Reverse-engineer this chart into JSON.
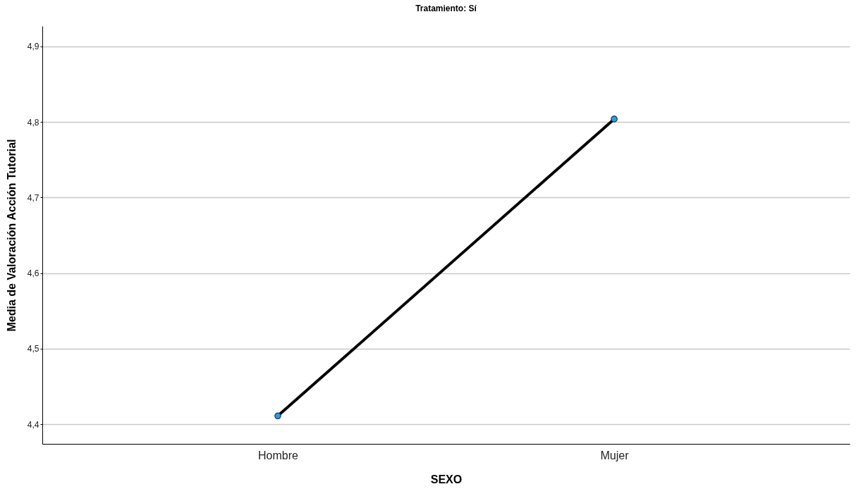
{
  "chart_data": {
    "type": "line",
    "title": "Tratamiento: Sí",
    "xlabel": "SEXO",
    "ylabel": "Media de Valoración Acción Tutorial",
    "categories": [
      "Hombre",
      "Mujer"
    ],
    "series": [
      {
        "color": "#000000",
        "values": [
          4.411,
          4.804
        ]
      }
    ],
    "ylim": [
      4.374,
      4.927
    ],
    "yticks": [
      {
        "value": 4.4,
        "label": "4,4"
      },
      {
        "value": 4.5,
        "label": "4,5"
      },
      {
        "value": 4.6,
        "label": "4,6"
      },
      {
        "value": 4.7,
        "label": "4,7"
      },
      {
        "value": 4.8,
        "label": "4,8"
      },
      {
        "value": 4.9,
        "label": "4,9"
      }
    ],
    "grid": "y",
    "marker": "circle"
  }
}
